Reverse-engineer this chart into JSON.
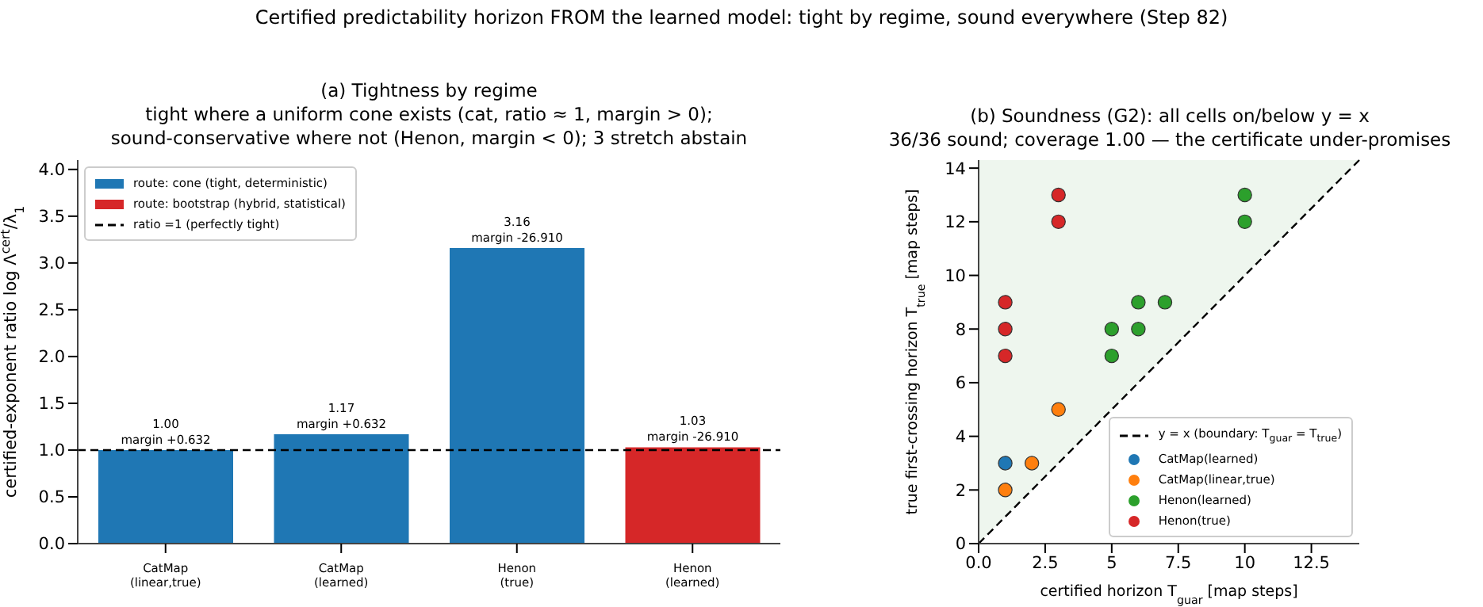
{
  "chart_data": [
    {
      "type": "other",
      "title": "Certified predictability horizon FROM the learned model: tight by regime, sound everywhere (Step 82)"
    },
    {
      "type": "bar",
      "title": "(a) Tightness by regime",
      "subtitle": "tight where a uniform cone exists (cat, ratio ≈ 1, margin > 0);\nsound-conservative where not (Henon, margin < 0); 3 stretch abstain",
      "ylabel": "certified-exponent ratio  log Λ$^{cert}$/λ$_{1}$",
      "categories": [
        "CatMap\n(linear,true)",
        "CatMap\n(learned)",
        "Henon\n(true)",
        "Henon\n(learned)"
      ],
      "stacked": true,
      "series": [
        {
          "name": "route: cone (tight, deterministic)",
          "color": "#1f77b4",
          "values": [
            1.0,
            1.17,
            3.16,
            null
          ],
          "value_labels": [
            "1.00\nmargin +0.632",
            "1.17\nmargin +0.632",
            "3.16\nmargin -26.910",
            null
          ]
        },
        {
          "name": "route: bootstrap (hybrid, statistical)",
          "color": "#d62728",
          "values": [
            null,
            null,
            null,
            1.03
          ],
          "value_labels": [
            null,
            null,
            null,
            "1.03\nmargin -26.910"
          ]
        }
      ],
      "ylim": [
        0,
        4.1
      ],
      "yticks": [
        {
          "value": 0,
          "label": "0.0"
        },
        {
          "value": 0.5,
          "label": "0.5"
        },
        {
          "value": 1,
          "label": "1.0"
        },
        {
          "value": 1.5,
          "label": "1.5"
        },
        {
          "value": 2,
          "label": "2.0"
        },
        {
          "value": 2.5,
          "label": "2.5"
        },
        {
          "value": 3,
          "label": "3.0"
        },
        {
          "value": 3.5,
          "label": "3.5"
        },
        {
          "value": 4,
          "label": "4.0"
        }
      ],
      "ref_lines": [
        {
          "axis": "y",
          "value": 1,
          "label": "ratio =1 (perfectly tight)",
          "color": "#000000",
          "line_style": "dashed"
        }
      ],
      "legend": "top left"
    },
    {
      "type": "scatter",
      "title": "(b) Soundness (G2): all cells on/below y = x",
      "subtitle": "36/36 sound; coverage 1.00 — the certificate under-promises",
      "xlabel": "certified horizon  T$_{guar}$  [map steps]",
      "ylabel": "true first-crossing horizon  T$_{true}$  [map steps]",
      "xlim": [
        0,
        14.3
      ],
      "ylim": [
        0,
        14.3
      ],
      "xticks": [
        {
          "value": 0,
          "label": "0.0"
        },
        2.5,
        5,
        7.5,
        10,
        12.5
      ],
      "yticks": [
        0,
        2,
        4,
        6,
        8,
        10,
        12,
        14
      ],
      "legend": "bottom right",
      "series": [
        {
          "type": "line",
          "name": "y = x (boundary: T$_{guar}$ = T$_{true}$)",
          "color": "#000000",
          "line_style": "dashed",
          "marker": "none",
          "x": [
            0,
            14.3
          ],
          "values": [
            0,
            14.3
          ]
        },
        {
          "name": "CatMap(learned)",
          "color": "#1f77b4",
          "marker": "circle",
          "x": [
            1
          ],
          "values": [
            3
          ]
        },
        {
          "name": "CatMap(linear,true)",
          "color": "#ff7f0e",
          "marker": "circle",
          "x": [
            1,
            2,
            3
          ],
          "values": [
            2,
            3,
            5
          ]
        },
        {
          "name": "Henon(learned)",
          "color": "#2ca02c",
          "marker": "circle",
          "x": [
            5,
            5,
            6,
            6,
            7,
            10,
            10
          ],
          "values": [
            7,
            8,
            8,
            9,
            9,
            12,
            13
          ]
        },
        {
          "name": "Henon(true)",
          "color": "#d62728",
          "marker": "circle",
          "x": [
            1,
            1,
            1,
            3,
            3
          ],
          "values": [
            7,
            8,
            9,
            12,
            13
          ]
        }
      ]
    }
  ]
}
